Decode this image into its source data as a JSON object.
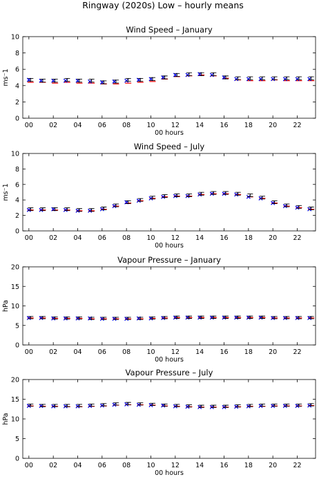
{
  "figure_title": "Ringway (2020s) Low – hourly means",
  "colors": {
    "red": "#ff0000",
    "blue": "#0000ff",
    "black": "#000000"
  },
  "chart_data": [
    {
      "type": "scatter",
      "title": "Wind Speed – January",
      "xlabel": "00 hours",
      "ylabel": "ms⁻1",
      "ylim": [
        0,
        10
      ],
      "yticks": [
        "0",
        "2",
        "4",
        "6",
        "8",
        "10"
      ],
      "xticks": [
        "00",
        "02",
        "04",
        "06",
        "08",
        "10",
        "12",
        "14",
        "16",
        "18",
        "20",
        "22"
      ],
      "x": [
        0,
        1,
        2,
        3,
        4,
        5,
        6,
        7,
        8,
        9,
        10,
        11,
        12,
        13,
        14,
        15,
        16,
        17,
        18,
        19,
        20,
        21,
        22,
        23
      ],
      "series": [
        {
          "color": "red",
          "marker": "line",
          "values": [
            4.4,
            4.4,
            4.3,
            4.4,
            4.3,
            4.3,
            4.2,
            4.2,
            4.3,
            4.4,
            4.5,
            4.8,
            5.1,
            5.2,
            5.3,
            5.2,
            4.9,
            4.7,
            4.6,
            4.6,
            4.7,
            4.6,
            4.6,
            4.6
          ]
        },
        {
          "color": "blue",
          "marker": "x",
          "values": [
            4.7,
            4.6,
            4.6,
            4.6,
            4.6,
            4.5,
            4.4,
            4.5,
            4.6,
            4.7,
            4.8,
            5.0,
            5.3,
            5.3,
            5.4,
            5.3,
            5.0,
            4.8,
            4.8,
            4.8,
            4.8,
            4.8,
            4.8,
            4.8
          ]
        },
        {
          "color": "black",
          "marker": "errorbar",
          "values": [
            4.7,
            4.6,
            4.6,
            4.7,
            4.6,
            4.6,
            4.4,
            4.5,
            4.7,
            4.7,
            4.8,
            5.0,
            5.3,
            5.4,
            5.4,
            5.4,
            5.0,
            4.9,
            4.9,
            4.9,
            4.9,
            4.9,
            4.9,
            4.9
          ]
        }
      ]
    },
    {
      "type": "scatter",
      "title": "Wind Speed – July",
      "xlabel": "00 hours",
      "ylabel": "ms⁻1",
      "ylim": [
        0,
        10
      ],
      "yticks": [
        "0",
        "2",
        "4",
        "6",
        "8",
        "10"
      ],
      "xticks": [
        "00",
        "02",
        "04",
        "06",
        "08",
        "10",
        "12",
        "14",
        "16",
        "18",
        "20",
        "22"
      ],
      "x": [
        0,
        1,
        2,
        3,
        4,
        5,
        6,
        7,
        8,
        9,
        10,
        11,
        12,
        13,
        14,
        15,
        16,
        17,
        18,
        19,
        20,
        21,
        22,
        23
      ],
      "series": [
        {
          "color": "red",
          "marker": "line",
          "values": [
            2.7,
            2.7,
            2.7,
            2.7,
            2.6,
            2.6,
            2.8,
            3.2,
            3.6,
            3.9,
            4.2,
            4.4,
            4.5,
            4.5,
            4.7,
            4.8,
            4.8,
            4.7,
            4.4,
            4.2,
            3.6,
            3.2,
            3.0,
            2.8
          ]
        },
        {
          "color": "blue",
          "marker": "x",
          "values": [
            2.7,
            2.7,
            2.8,
            2.7,
            2.6,
            2.6,
            2.8,
            3.2,
            3.7,
            3.9,
            4.2,
            4.4,
            4.5,
            4.5,
            4.7,
            4.8,
            4.8,
            4.7,
            4.4,
            4.2,
            3.6,
            3.2,
            3.0,
            2.8
          ]
        },
        {
          "color": "black",
          "marker": "errorbar",
          "values": [
            2.8,
            2.8,
            2.8,
            2.8,
            2.7,
            2.7,
            2.9,
            3.3,
            3.7,
            4.0,
            4.3,
            4.5,
            4.6,
            4.6,
            4.8,
            4.9,
            4.9,
            4.8,
            4.6,
            4.3,
            3.7,
            3.3,
            3.1,
            2.9
          ]
        }
      ]
    },
    {
      "type": "scatter",
      "title": "Vapour Pressure – January",
      "xlabel": "00 hours",
      "ylabel": "hPa",
      "ylim": [
        0,
        20
      ],
      "yticks": [
        "0",
        "5",
        "10",
        "15",
        "20"
      ],
      "xticks": [
        "00",
        "02",
        "04",
        "06",
        "08",
        "10",
        "12",
        "14",
        "16",
        "18",
        "20",
        "22"
      ],
      "x": [
        0,
        1,
        2,
        3,
        4,
        5,
        6,
        7,
        8,
        9,
        10,
        11,
        12,
        13,
        14,
        15,
        16,
        17,
        18,
        19,
        20,
        21,
        22,
        23
      ],
      "series": [
        {
          "color": "red",
          "marker": "line",
          "values": [
            6.9,
            6.9,
            6.8,
            6.8,
            6.8,
            6.7,
            6.7,
            6.7,
            6.7,
            6.7,
            6.8,
            6.9,
            7.0,
            7.0,
            7.0,
            7.0,
            7.0,
            7.0,
            7.0,
            7.0,
            6.9,
            6.9,
            6.9,
            6.9
          ]
        },
        {
          "color": "blue",
          "marker": "x",
          "values": [
            6.9,
            6.9,
            6.8,
            6.8,
            6.8,
            6.8,
            6.7,
            6.7,
            6.7,
            6.8,
            6.8,
            6.9,
            7.0,
            7.0,
            7.0,
            7.0,
            7.0,
            7.0,
            7.0,
            7.0,
            6.9,
            6.9,
            6.9,
            6.9
          ]
        },
        {
          "color": "black",
          "marker": "errorbar",
          "values": [
            7.0,
            7.0,
            6.9,
            6.9,
            6.9,
            6.8,
            6.8,
            6.8,
            6.8,
            6.8,
            6.9,
            7.0,
            7.1,
            7.1,
            7.1,
            7.1,
            7.1,
            7.1,
            7.1,
            7.1,
            7.0,
            7.0,
            7.0,
            7.0
          ]
        }
      ]
    },
    {
      "type": "scatter",
      "title": "Vapour Pressure – July",
      "xlabel": "00 hours",
      "ylabel": "hPa",
      "ylim": [
        0,
        20
      ],
      "yticks": [
        "0",
        "5",
        "10",
        "15",
        "20"
      ],
      "xticks": [
        "00",
        "02",
        "04",
        "06",
        "08",
        "10",
        "12",
        "14",
        "16",
        "18",
        "20",
        "22"
      ],
      "x": [
        0,
        1,
        2,
        3,
        4,
        5,
        6,
        7,
        8,
        9,
        10,
        11,
        12,
        13,
        14,
        15,
        16,
        17,
        18,
        19,
        20,
        21,
        22,
        23
      ],
      "series": [
        {
          "color": "red",
          "marker": "line",
          "values": [
            13.3,
            13.2,
            13.2,
            13.1,
            13.1,
            13.2,
            13.3,
            13.5,
            13.6,
            13.6,
            13.5,
            13.3,
            13.2,
            13.1,
            13.0,
            13.0,
            13.0,
            13.1,
            13.2,
            13.2,
            13.3,
            13.3,
            13.3,
            13.4
          ]
        },
        {
          "color": "blue",
          "marker": "x",
          "values": [
            13.3,
            13.3,
            13.2,
            13.2,
            13.2,
            13.3,
            13.4,
            13.6,
            13.7,
            13.6,
            13.5,
            13.4,
            13.2,
            13.1,
            13.0,
            13.0,
            13.0,
            13.1,
            13.2,
            13.3,
            13.3,
            13.3,
            13.3,
            13.4
          ]
        },
        {
          "color": "black",
          "marker": "errorbar",
          "values": [
            13.5,
            13.4,
            13.4,
            13.4,
            13.4,
            13.5,
            13.6,
            13.8,
            13.9,
            13.8,
            13.7,
            13.5,
            13.4,
            13.3,
            13.2,
            13.2,
            13.2,
            13.3,
            13.4,
            13.5,
            13.5,
            13.5,
            13.5,
            13.6
          ]
        }
      ]
    }
  ]
}
